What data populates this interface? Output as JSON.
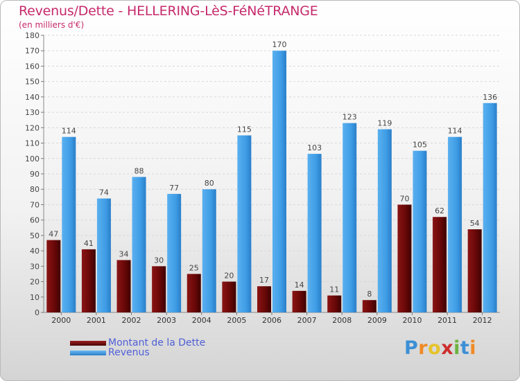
{
  "chart_data": {
    "type": "bar",
    "title": "Revenus/Dette - HELLERING-LèS-FéNéTRANGE",
    "subtitle": "(en milliers d'€)",
    "categories": [
      "2000",
      "2001",
      "2002",
      "2003",
      "2004",
      "2005",
      "2006",
      "2007",
      "2008",
      "2009",
      "2010",
      "2011",
      "2012"
    ],
    "series": [
      {
        "name": "Montant de la Dette",
        "color": "#7a0c0c",
        "values": [
          47,
          41,
          34,
          30,
          25,
          20,
          17,
          14,
          11,
          8,
          70,
          62,
          54
        ]
      },
      {
        "name": "Revenus",
        "color": "#3d9be6",
        "values": [
          114,
          74,
          88,
          77,
          80,
          115,
          170,
          103,
          123,
          119,
          105,
          114,
          136
        ]
      }
    ],
    "ylim": [
      0,
      180
    ],
    "yticks": [
      0,
      10,
      20,
      30,
      40,
      50,
      60,
      70,
      80,
      90,
      100,
      110,
      120,
      130,
      140,
      150,
      160,
      170,
      180
    ],
    "grid": true,
    "legend_position": "bottom-left"
  },
  "brand": {
    "letters": [
      "P",
      "r",
      "o",
      "x",
      "i",
      "t",
      "i"
    ],
    "colors": [
      "#3c8fd6",
      "#f08a24",
      "#e6c32b",
      "#cc2e2e",
      "#6cb33f",
      "#3c8fd6",
      "#f08a24"
    ]
  }
}
